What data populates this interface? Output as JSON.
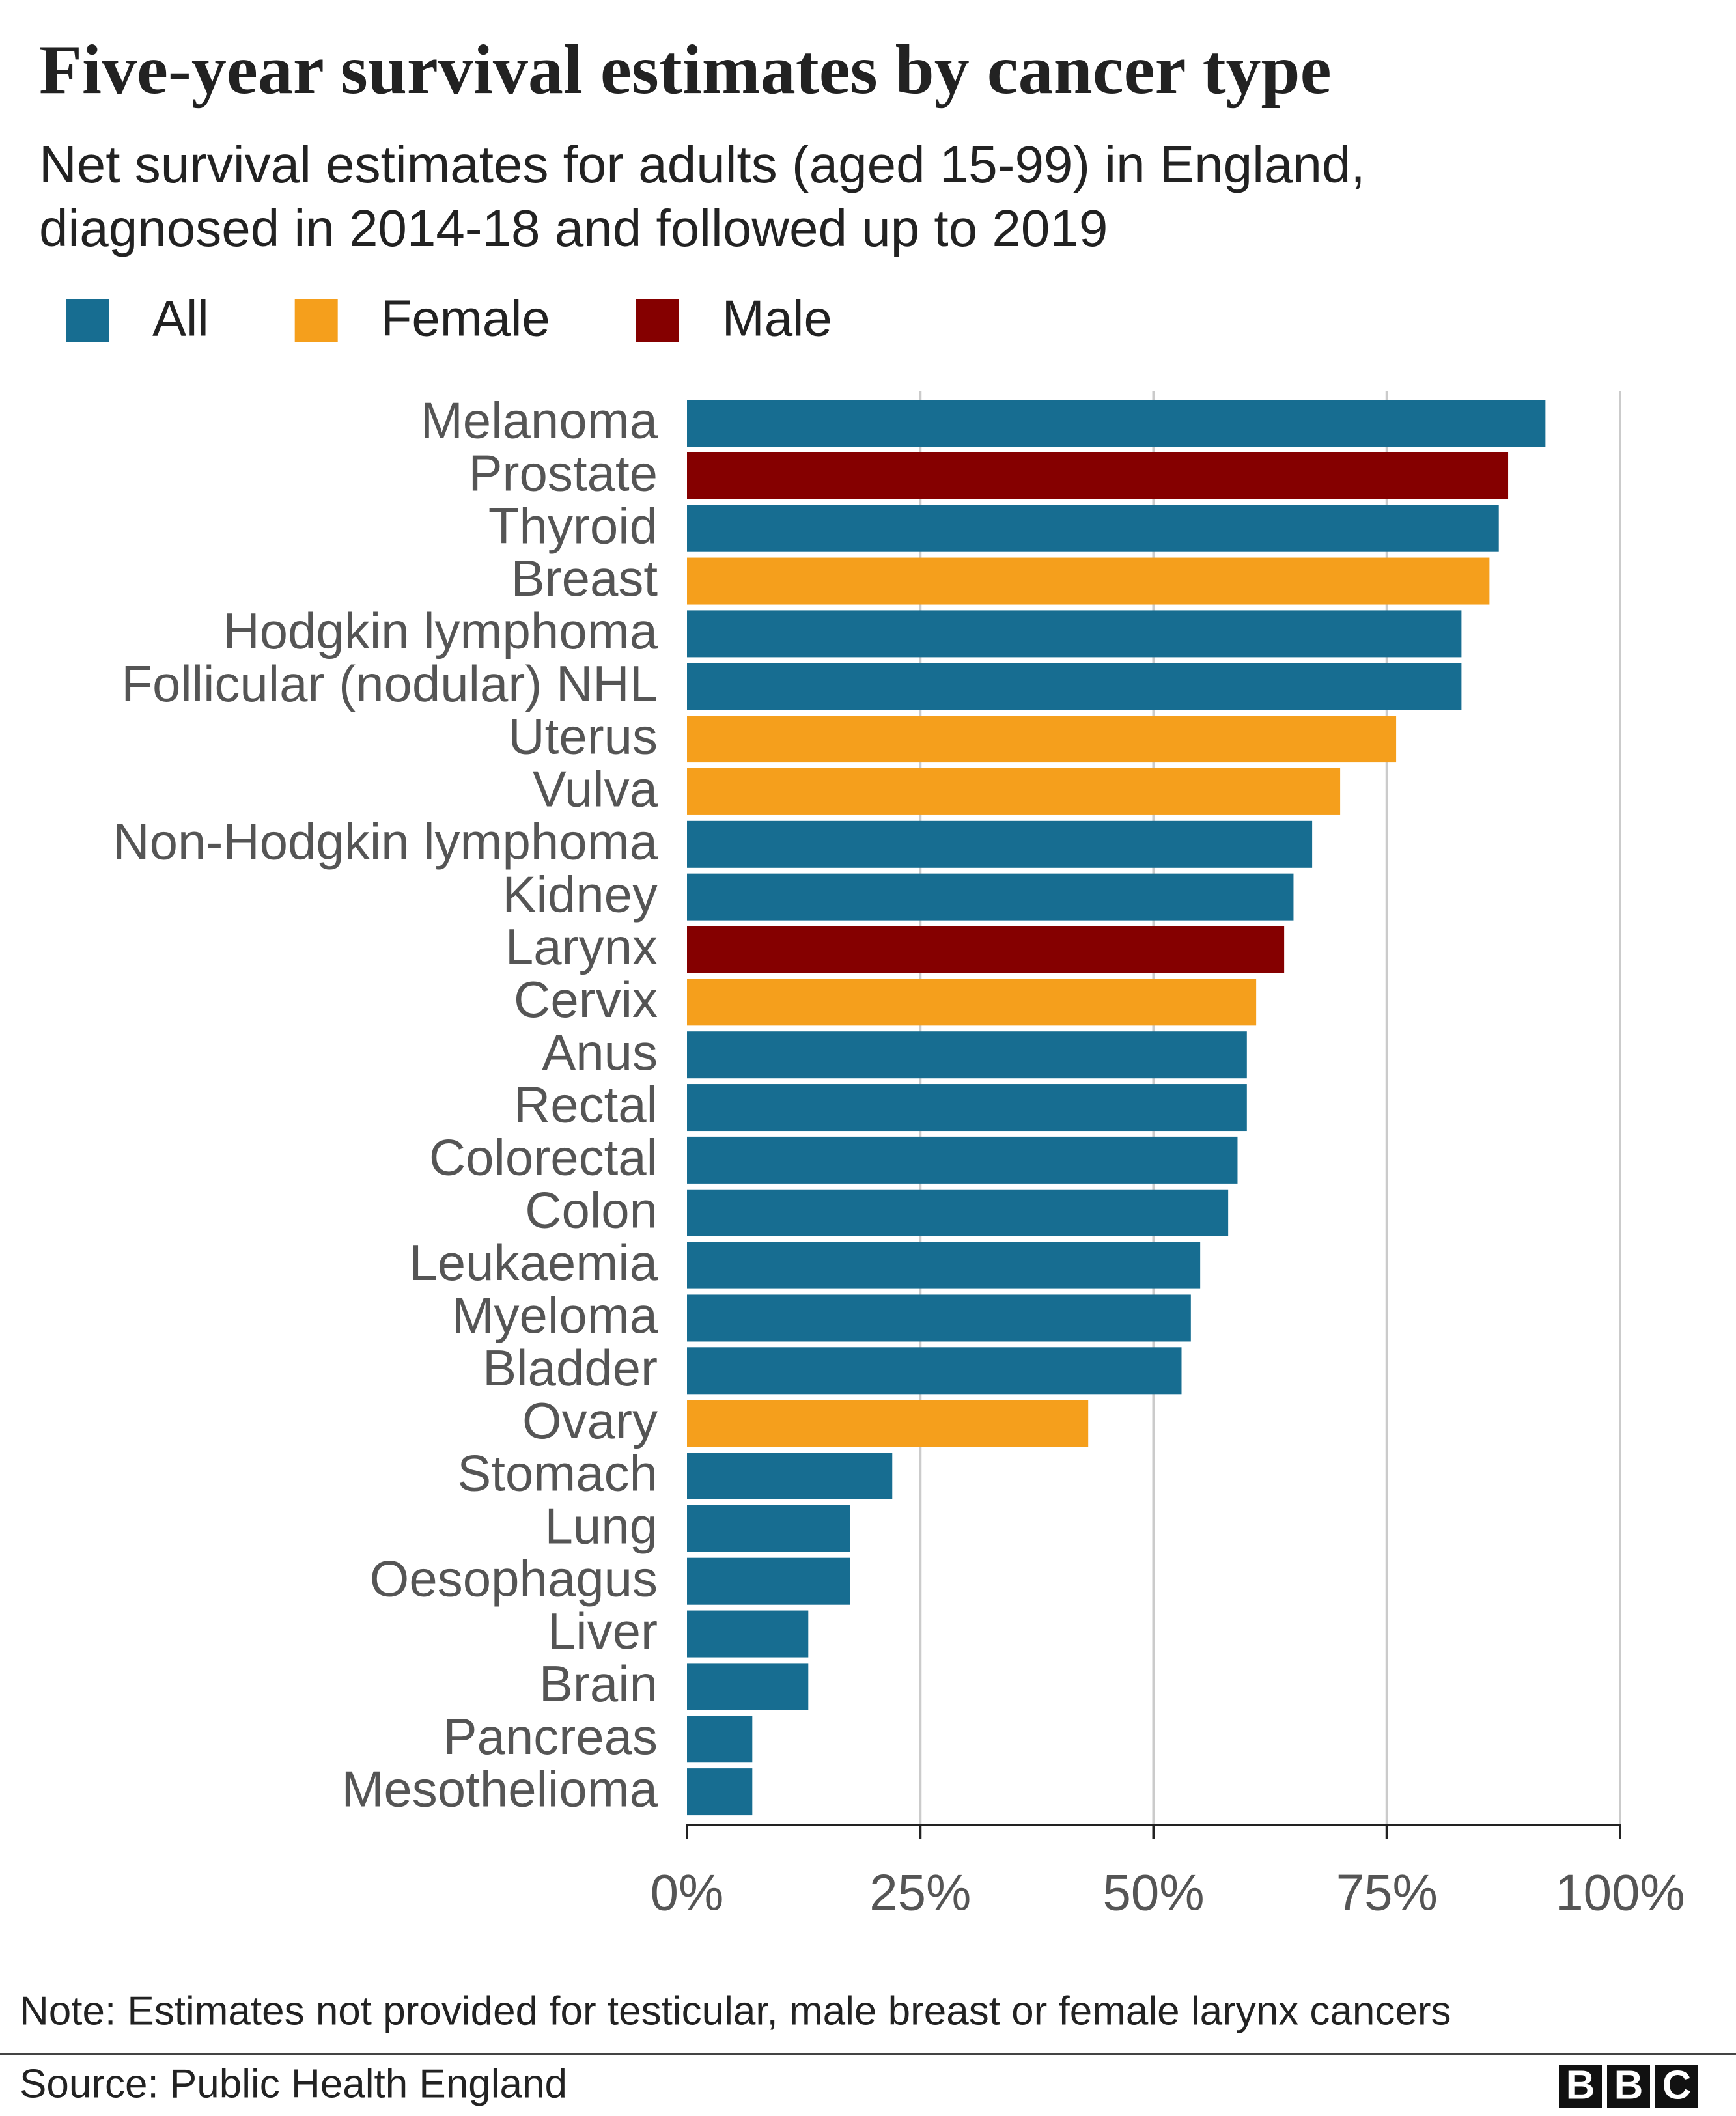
{
  "chart_data": {
    "type": "barh",
    "title": "Five-year survival estimates by cancer type",
    "subtitle": [
      "Net survival estimates for adults (aged 15-99) in England,",
      "diagnosed in 2014-18 and followed up to 2019"
    ],
    "categories": [
      "Melanoma",
      "Prostate",
      "Thyroid",
      "Breast",
      "Hodgkin lymphoma",
      "Follicular (nodular) NHL",
      "Uterus",
      "Vulva",
      "Non-Hodgkin lymphoma",
      "Kidney",
      "Larynx",
      "Cervix",
      "Anus",
      "Rectal",
      "Colorectal",
      "Colon",
      "Leukaemia",
      "Myeloma",
      "Bladder",
      "Ovary",
      "Stomach",
      "Lung",
      "Oesophagus",
      "Liver",
      "Brain",
      "Pancreas",
      "Mesothelioma"
    ],
    "series": [
      {
        "name": "All",
        "color": "#176d91",
        "values": [
          92,
          null,
          87,
          null,
          83,
          83,
          null,
          null,
          67,
          65,
          null,
          null,
          60,
          60,
          59,
          58,
          55,
          54,
          53,
          null,
          22,
          17.5,
          17.5,
          13,
          13,
          7,
          7
        ]
      },
      {
        "name": "Female",
        "color": "#f59f1c",
        "values": [
          null,
          null,
          null,
          86,
          null,
          null,
          76,
          70,
          null,
          null,
          null,
          61,
          null,
          null,
          null,
          null,
          null,
          null,
          null,
          43,
          null,
          null,
          null,
          null,
          null,
          null,
          null
        ]
      },
      {
        "name": "Male",
        "color": "#850000",
        "values": [
          null,
          88,
          null,
          null,
          null,
          null,
          null,
          null,
          null,
          null,
          64,
          null,
          null,
          null,
          null,
          null,
          null,
          null,
          null,
          null,
          null,
          null,
          null,
          null,
          null,
          null,
          null
        ]
      }
    ],
    "xlim": [
      0,
      100
    ],
    "xticks": [
      {
        "value": 0,
        "label": "0%"
      },
      {
        "value": 25,
        "label": "25%"
      },
      {
        "value": 50,
        "label": "50%"
      },
      {
        "value": 75,
        "label": "75%"
      },
      {
        "value": 100,
        "label": "100%"
      }
    ],
    "grid": true,
    "note": "Note: Estimates not provided for testicular, male breast or female larynx cancers",
    "source": "Source: Public Health England"
  },
  "logo": [
    "B",
    "B",
    "C"
  ]
}
